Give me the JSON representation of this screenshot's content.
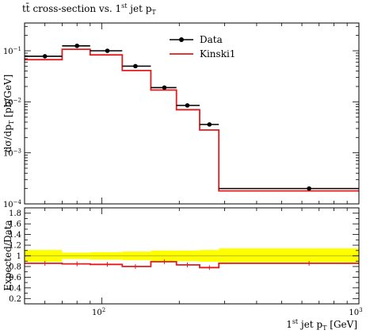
{
  "chart_data": [
    {
      "type": "line",
      "title": "tt̄ cross-section vs. 1st jet pT",
      "title_parts": {
        "main": "tt̄ cross-section vs. 1",
        "sup": "st",
        "mid": " jet p",
        "sub": "T"
      },
      "ylabel": "dσ/dpT [pb/GeV]",
      "ylabel_parts": {
        "main": "dσ/dp",
        "sub": "T",
        "tail": " [pb/GeV]"
      },
      "x_scale": "log",
      "y_scale": "log",
      "xlim": [
        50,
        1000
      ],
      "ylim": [
        0.0001,
        0.35
      ],
      "y_ticks": [
        {
          "value": 0.1,
          "base": "10",
          "exp": "−1"
        },
        {
          "value": 0.01,
          "base": "10",
          "exp": "−2"
        },
        {
          "value": 0.001,
          "base": "10",
          "exp": "−3"
        },
        {
          "value": 0.0001,
          "base": "10",
          "exp": "−4"
        }
      ],
      "legend_position": "top-right",
      "bin_edges": [
        50,
        70,
        90,
        120,
        155,
        195,
        240,
        285,
        1000
      ],
      "series": [
        {
          "name": "Data",
          "style": "points-with-bin-bars",
          "color": "#000000",
          "x": [
            60,
            80,
            105,
            135,
            175,
            215,
            262,
            640
          ],
          "values": [
            0.078,
            0.125,
            0.1,
            0.05,
            0.019,
            0.0085,
            0.0036,
            0.0002
          ]
        },
        {
          "name": "Kinski1",
          "style": "step",
          "color": "#e41a1c",
          "values": [
            0.067,
            0.107,
            0.083,
            0.041,
            0.017,
            0.007,
            0.0028,
            0.00018
          ]
        }
      ]
    },
    {
      "type": "line",
      "ylabel": "Expected/Data",
      "xlabel": "1st jet pT [GeV]",
      "xlabel_parts": {
        "main": "1",
        "sup": "st",
        "mid": " jet p",
        "sub": "T",
        "tail": " [GeV]"
      },
      "x_scale": "log",
      "xlim": [
        50,
        1000
      ],
      "ylim": [
        0.1,
        1.9
      ],
      "y_ticks": [
        "0.2",
        "0.4",
        "0.6",
        "0.8",
        "1",
        "1.2",
        "1.4",
        "1.6",
        "1.8"
      ],
      "x_ticks": [
        {
          "value": 100,
          "base": "10",
          "exp": "2"
        },
        {
          "value": 1000,
          "base": "10",
          "exp": "3"
        }
      ],
      "bin_edges": [
        50,
        70,
        90,
        120,
        155,
        195,
        240,
        285,
        1000
      ],
      "band": {
        "color": "#ffff00",
        "lower": [
          0.89,
          0.94,
          0.93,
          0.92,
          0.9,
          0.9,
          0.89,
          0.88
        ],
        "upper": [
          1.11,
          1.06,
          1.07,
          1.08,
          1.1,
          1.1,
          1.11,
          1.14
        ]
      },
      "series": [
        {
          "name": "Kinski1",
          "style": "step",
          "color": "#e41a1c",
          "values": [
            0.86,
            0.85,
            0.84,
            0.8,
            0.89,
            0.83,
            0.78,
            0.86
          ]
        }
      ]
    }
  ]
}
